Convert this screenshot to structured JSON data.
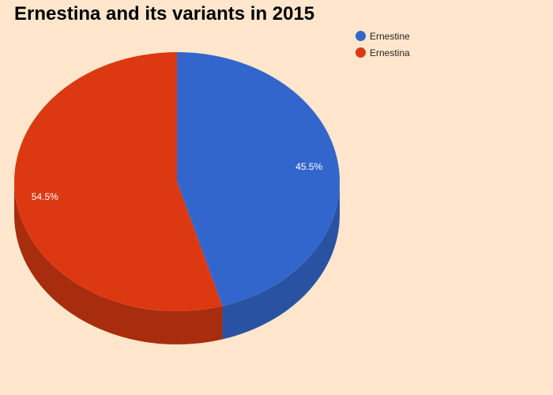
{
  "chart_data": {
    "type": "pie",
    "title": "Ernestina and its variants in 2015",
    "style": "3d",
    "categories": [
      "Ernestine",
      "Ernestina"
    ],
    "values": [
      45.5,
      54.5
    ],
    "data_labels": [
      "45.5%",
      "54.5%"
    ],
    "colors": [
      "#3366cc",
      "#dc3912"
    ],
    "side_colors": [
      "#2a52a3",
      "#a82c0e"
    ],
    "legend_position": "top-right"
  }
}
